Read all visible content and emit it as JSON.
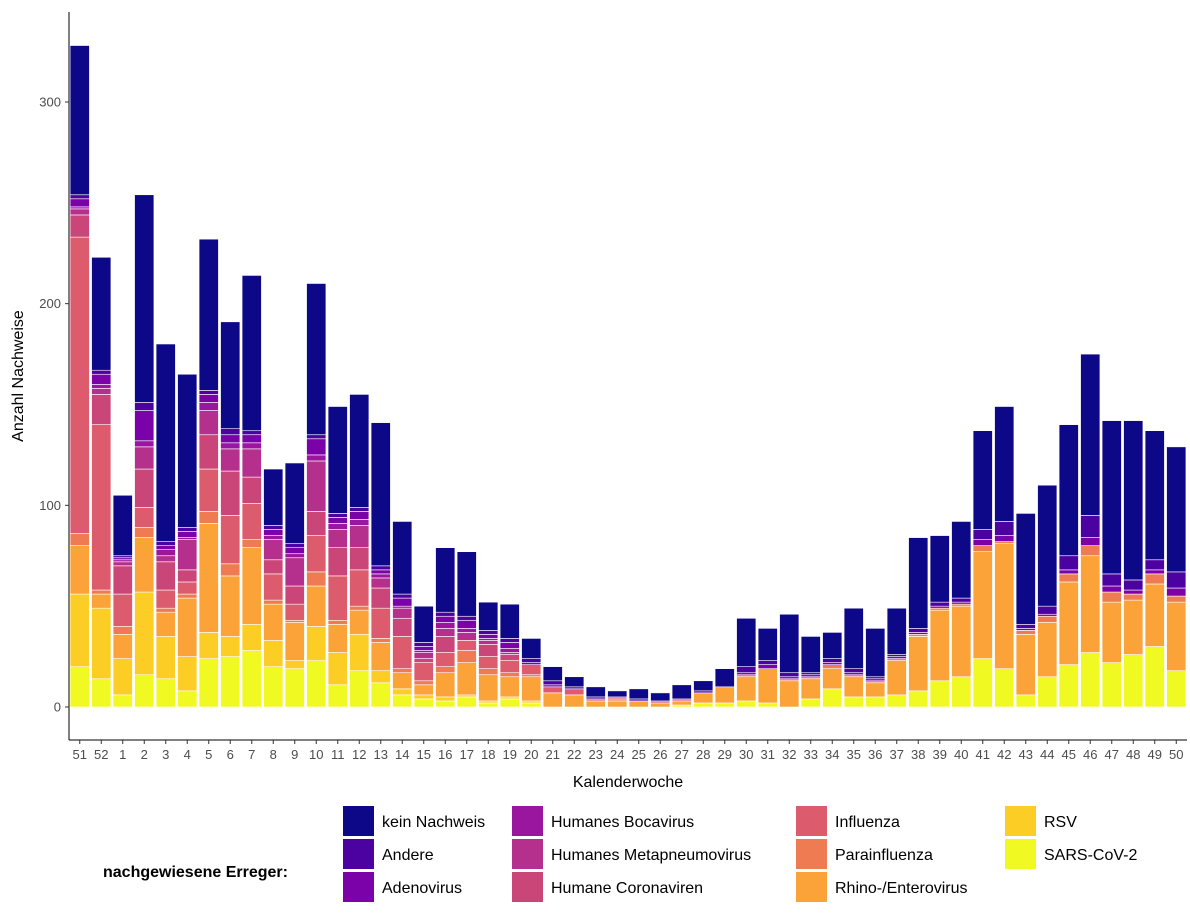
{
  "chart_data": {
    "type": "bar",
    "stacked": true,
    "xlabel": "Kalenderwoche",
    "ylabel": "Anzahl Nachweise",
    "ylim": [
      0,
      330
    ],
    "yticks": [
      0,
      100,
      200,
      300
    ],
    "grid": false,
    "legend_placement": "bottom",
    "legend_title": "nachgewiesene Erreger:",
    "categories": [
      "51",
      "52",
      "1",
      "2",
      "3",
      "4",
      "5",
      "6",
      "7",
      "8",
      "9",
      "10",
      "11",
      "12",
      "13",
      "14",
      "15",
      "16",
      "17",
      "18",
      "19",
      "20",
      "21",
      "22",
      "23",
      "24",
      "25",
      "26",
      "27",
      "28",
      "29",
      "30",
      "31",
      "32",
      "33",
      "34",
      "35",
      "36",
      "37",
      "38",
      "39",
      "40",
      "41",
      "42",
      "43",
      "44",
      "45",
      "46",
      "47",
      "48",
      "49",
      "50"
    ],
    "totals": [
      328,
      223,
      105,
      254,
      180,
      165,
      232,
      191,
      214,
      118,
      121,
      210,
      149,
      155,
      141,
      92,
      50,
      79,
      77,
      52,
      51,
      34,
      20,
      15,
      10,
      8,
      9,
      7,
      11,
      13,
      19,
      44,
      39,
      46,
      35,
      37,
      49,
      39,
      49,
      84,
      85,
      92,
      137,
      149,
      96,
      110,
      140,
      175,
      142,
      142,
      137,
      129
    ],
    "series": [
      {
        "name": "SARS-CoV-2",
        "color": "#f0f921",
        "values": [
          20,
          14,
          6,
          16,
          14,
          8,
          24,
          25,
          28,
          20,
          19,
          23,
          11,
          18,
          12,
          6,
          4,
          3,
          5,
          2,
          4,
          2,
          0,
          0,
          0,
          0,
          0,
          0,
          1,
          2,
          2,
          3,
          2,
          0,
          4,
          9,
          5,
          5,
          6,
          8,
          13,
          15,
          24,
          19,
          6,
          15,
          21,
          27,
          22,
          26,
          30,
          18
        ]
      },
      {
        "name": "RSV",
        "color": "#fccd25",
        "values": [
          36,
          35,
          18,
          41,
          21,
          17,
          13,
          10,
          13,
          13,
          4,
          17,
          16,
          18,
          6,
          3,
          2,
          2,
          1,
          1,
          1,
          1,
          0,
          0,
          0,
          0,
          0,
          0,
          0,
          0,
          0,
          0,
          0,
          0,
          0,
          0,
          0,
          0,
          0,
          0,
          0,
          0,
          0,
          0,
          0,
          0,
          0,
          0,
          0,
          0,
          0,
          0
        ]
      },
      {
        "name": "Rhino-/Enterovirus",
        "color": "#fba238",
        "values": [
          24,
          7,
          12,
          27,
          12,
          29,
          54,
          30,
          38,
          18,
          19,
          20,
          14,
          12,
          14,
          8,
          5,
          12,
          16,
          13,
          10,
          12,
          7,
          6,
          3,
          3,
          3,
          2,
          2,
          5,
          8,
          12,
          17,
          13,
          10,
          10,
          10,
          7,
          17,
          27,
          35,
          35,
          53,
          62,
          30,
          27,
          41,
          48,
          30,
          27,
          31,
          34
        ]
      },
      {
        "name": "Parainfluenza",
        "color": "#ee7b51",
        "values": [
          6,
          2,
          4,
          5,
          2,
          2,
          6,
          6,
          4,
          2,
          1,
          7,
          2,
          2,
          2,
          2,
          2,
          3,
          6,
          3,
          2,
          1,
          0,
          0,
          0,
          1,
          0,
          0,
          0,
          0,
          0,
          1,
          0,
          1,
          1,
          2,
          1,
          1,
          1,
          1,
          1,
          1,
          3,
          1,
          2,
          3,
          4,
          5,
          5,
          3,
          5,
          3
        ]
      },
      {
        "name": "Influenza",
        "color": "#dc5b6c",
        "values": [
          147,
          82,
          16,
          10,
          9,
          6,
          21,
          24,
          18,
          13,
          8,
          18,
          22,
          18,
          15,
          16,
          9,
          7,
          5,
          6,
          6,
          5,
          3,
          3,
          1,
          1,
          0,
          1,
          1,
          0,
          0,
          0,
          0,
          0,
          0,
          0,
          0,
          0,
          0,
          0,
          0,
          0,
          0,
          0,
          0,
          0,
          0,
          0,
          0,
          0,
          0,
          0
        ]
      },
      {
        "name": "Humane Coronaviren",
        "color": "#ca4678",
        "values": [
          11,
          15,
          14,
          19,
          14,
          6,
          17,
          22,
          13,
          7,
          9,
          12,
          14,
          11,
          10,
          9,
          2,
          8,
          0,
          6,
          3,
          0,
          0,
          0,
          0,
          0,
          0,
          0,
          0,
          0,
          0,
          0,
          0,
          0,
          0,
          0,
          0,
          0,
          0,
          0,
          0,
          0,
          0,
          0,
          0,
          0,
          0,
          0,
          0,
          0,
          0,
          0
        ]
      },
      {
        "name": "Humanes Metapneumovirus",
        "color": "#b52f8c",
        "values": [
          3,
          3,
          2,
          11,
          3,
          15,
          12,
          11,
          14,
          10,
          14,
          25,
          9,
          11,
          5,
          5,
          3,
          4,
          4,
          2,
          1,
          0,
          0,
          0,
          0,
          0,
          0,
          0,
          0,
          0,
          0,
          0,
          0,
          0,
          0,
          0,
          0,
          0,
          0,
          0,
          0,
          0,
          0,
          0,
          0,
          0,
          0,
          0,
          0,
          0,
          0,
          0
        ]
      },
      {
        "name": "Humanes Bocavirus",
        "color": "#9a169f",
        "values": [
          1,
          2,
          1,
          3,
          3,
          1,
          4,
          3,
          3,
          2,
          2,
          3,
          3,
          3,
          2,
          1,
          1,
          3,
          2,
          1,
          2,
          0,
          0,
          0,
          0,
          0,
          0,
          0,
          0,
          0,
          0,
          0,
          0,
          0,
          0,
          0,
          0,
          0,
          0,
          0,
          0,
          0,
          0,
          0,
          0,
          0,
          0,
          0,
          0,
          0,
          0,
          0
        ]
      },
      {
        "name": "Adenovirus",
        "color": "#7b02a8",
        "values": [
          4,
          5,
          1,
          15,
          2,
          3,
          4,
          4,
          4,
          3,
          3,
          8,
          3,
          4,
          2,
          4,
          2,
          3,
          4,
          2,
          3,
          1,
          1,
          0,
          0,
          0,
          0,
          0,
          0,
          0,
          0,
          1,
          2,
          1,
          1,
          1,
          1,
          1,
          1,
          1,
          1,
          1,
          3,
          3,
          1,
          1,
          2,
          4,
          3,
          2,
          2,
          4
        ]
      },
      {
        "name": "Andere",
        "color": "#4c02a1",
        "values": [
          2,
          2,
          1,
          4,
          2,
          2,
          2,
          3,
          2,
          2,
          2,
          2,
          2,
          2,
          2,
          2,
          2,
          2,
          2,
          2,
          2,
          2,
          2,
          1,
          1,
          0,
          1,
          0,
          0,
          1,
          0,
          3,
          2,
          2,
          1,
          2,
          2,
          1,
          1,
          2,
          2,
          2,
          5,
          7,
          2,
          4,
          7,
          11,
          6,
          5,
          5,
          8
        ]
      },
      {
        "name": "kein Nachweis",
        "color": "#0d0887",
        "values": [
          74,
          56,
          30,
          103,
          98,
          76,
          75,
          53,
          77,
          28,
          40,
          75,
          53,
          56,
          71,
          36,
          18,
          32,
          32,
          14,
          17,
          10,
          7,
          5,
          5,
          3,
          5,
          4,
          7,
          5,
          9,
          24,
          16,
          29,
          18,
          13,
          30,
          24,
          23,
          45,
          33,
          38,
          49,
          57,
          55,
          60,
          65,
          80,
          76,
          79,
          64,
          62
        ]
      }
    ],
    "legend_order": [
      "kein Nachweis",
      "Andere",
      "Adenovirus",
      "Humanes Bocavirus",
      "Humanes Metapneumovirus",
      "Humane Coronaviren",
      "Influenza",
      "Parainfluenza",
      "Rhino-/Enterovirus",
      "RSV",
      "SARS-CoV-2"
    ]
  }
}
